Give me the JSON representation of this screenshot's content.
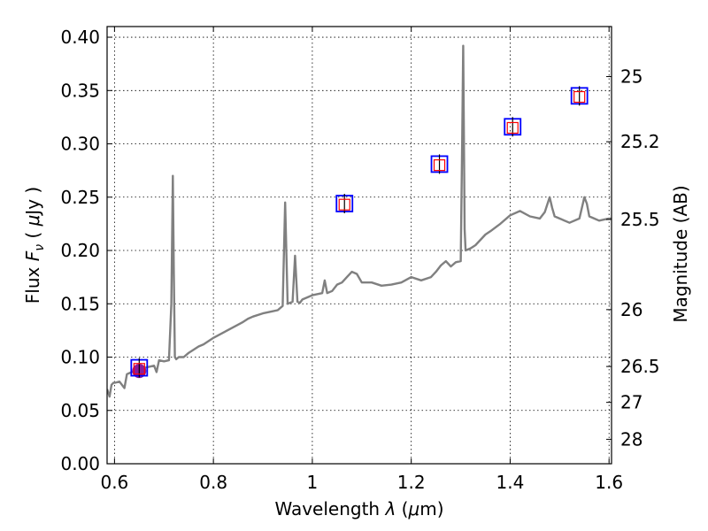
{
  "chart_data": {
    "type": "line",
    "xlabel": "Wavelength  λ (μm)",
    "ylabel": "Flux  F_ν  ( μJy )",
    "y2label": "Magnitude (AB)",
    "xlim": [
      0.585,
      1.605
    ],
    "ylim": [
      0.0,
      0.41
    ],
    "grid": true,
    "grid_style": "dotted",
    "x_ticks": [
      {
        "value": 0.6,
        "label": "0.6"
      },
      {
        "value": 0.8,
        "label": "0.8"
      },
      {
        "value": 1.0,
        "label": "1"
      },
      {
        "value": 1.2,
        "label": "1.2"
      },
      {
        "value": 1.4,
        "label": "1.4"
      },
      {
        "value": 1.6,
        "label": "1.6"
      }
    ],
    "y_ticks": [
      {
        "value": 0.0,
        "label": "0.00"
      },
      {
        "value": 0.05,
        "label": "0.05"
      },
      {
        "value": 0.1,
        "label": "0.10"
      },
      {
        "value": 0.15,
        "label": "0.15"
      },
      {
        "value": 0.2,
        "label": "0.20"
      },
      {
        "value": 0.25,
        "label": "0.25"
      },
      {
        "value": 0.3,
        "label": "0.30"
      },
      {
        "value": 0.35,
        "label": "0.35"
      },
      {
        "value": 0.4,
        "label": "0.40"
      }
    ],
    "y2_ticks": [
      {
        "mag": 25,
        "label": "25"
      },
      {
        "mag": 25.2,
        "label": "25.2"
      },
      {
        "mag": 25.5,
        "label": "25.5"
      },
      {
        "mag": 26,
        "label": "26"
      },
      {
        "mag": 26.5,
        "label": "26.5"
      },
      {
        "mag": 27,
        "label": "27"
      },
      {
        "mag": 28,
        "label": "28"
      }
    ],
    "series": [
      {
        "kind": "spectrum",
        "color": "#808080",
        "x": [
          0.585,
          0.59,
          0.594,
          0.598,
          0.602,
          0.61,
          0.62,
          0.625,
          0.63,
          0.64,
          0.65,
          0.66,
          0.67,
          0.68,
          0.685,
          0.69,
          0.7,
          0.71,
          0.715,
          0.718,
          0.72,
          0.722,
          0.725,
          0.73,
          0.74,
          0.75,
          0.76,
          0.77,
          0.78,
          0.8,
          0.82,
          0.84,
          0.86,
          0.87,
          0.88,
          0.9,
          0.92,
          0.93,
          0.94,
          0.945,
          0.95,
          0.96,
          0.965,
          0.97,
          0.975,
          0.98,
          1.0,
          1.02,
          1.025,
          1.03,
          1.04,
          1.05,
          1.06,
          1.07,
          1.08,
          1.09,
          1.1,
          1.12,
          1.14,
          1.16,
          1.18,
          1.2,
          1.22,
          1.24,
          1.25,
          1.26,
          1.27,
          1.28,
          1.29,
          1.3,
          1.303,
          1.305,
          1.308,
          1.31,
          1.32,
          1.33,
          1.34,
          1.35,
          1.36,
          1.38,
          1.4,
          1.42,
          1.44,
          1.46,
          1.47,
          1.48,
          1.485,
          1.49,
          1.5,
          1.52,
          1.54,
          1.55,
          1.555,
          1.56,
          1.57,
          1.58,
          1.59,
          1.6,
          1.605
        ],
        "y": [
          0.07,
          0.063,
          0.074,
          0.076,
          0.076,
          0.077,
          0.071,
          0.084,
          0.085,
          0.087,
          0.088,
          0.09,
          0.091,
          0.092,
          0.086,
          0.097,
          0.096,
          0.097,
          0.15,
          0.27,
          0.18,
          0.1,
          0.098,
          0.1,
          0.1,
          0.104,
          0.107,
          0.11,
          0.112,
          0.118,
          0.123,
          0.128,
          0.133,
          0.136,
          0.138,
          0.141,
          0.143,
          0.144,
          0.148,
          0.245,
          0.15,
          0.152,
          0.195,
          0.152,
          0.151,
          0.154,
          0.158,
          0.16,
          0.172,
          0.16,
          0.162,
          0.168,
          0.17,
          0.175,
          0.18,
          0.178,
          0.17,
          0.17,
          0.167,
          0.168,
          0.17,
          0.175,
          0.172,
          0.175,
          0.18,
          0.186,
          0.19,
          0.185,
          0.189,
          0.19,
          0.3,
          0.392,
          0.22,
          0.2,
          0.202,
          0.205,
          0.21,
          0.215,
          0.218,
          0.225,
          0.233,
          0.237,
          0.232,
          0.23,
          0.236,
          0.25,
          0.24,
          0.232,
          0.23,
          0.226,
          0.23,
          0.25,
          0.244,
          0.232,
          0.23,
          0.228,
          0.229,
          0.23,
          0.23
        ]
      },
      {
        "kind": "photometry",
        "marker": "square",
        "edgecolor": "#0000ff",
        "x": [
          0.65,
          1.065,
          1.257,
          1.405,
          1.54
        ],
        "y": [
          0.09,
          0.244,
          0.281,
          0.316,
          0.345
        ]
      },
      {
        "kind": "model_photometry",
        "marker": "square",
        "edgecolor": "#ff0000",
        "x": [
          0.65,
          1.065,
          1.257,
          1.405,
          1.54
        ],
        "y": [
          0.089,
          0.243,
          0.28,
          0.315,
          0.344
        ]
      },
      {
        "kind": "detection",
        "marker": "circle",
        "color": "#8b1a9c",
        "x": [
          0.65
        ],
        "y": [
          0.087
        ]
      }
    ]
  }
}
